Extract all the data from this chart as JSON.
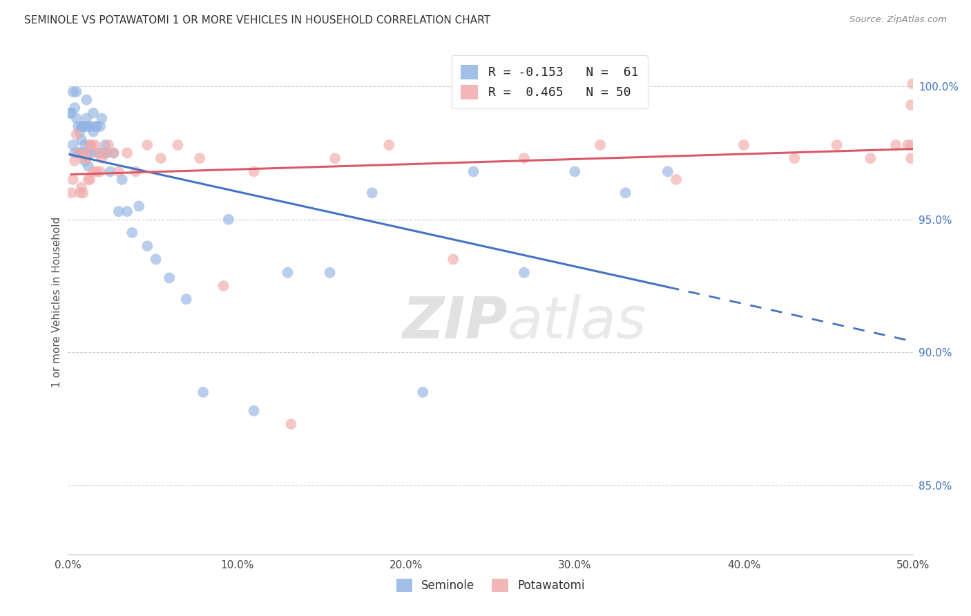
{
  "title": "SEMINOLE VS POTAWATOMI 1 OR MORE VEHICLES IN HOUSEHOLD CORRELATION CHART",
  "source": "Source: ZipAtlas.com",
  "ylabel": "1 or more Vehicles in Household",
  "y_tick_labels": [
    "85.0%",
    "90.0%",
    "95.0%",
    "100.0%"
  ],
  "y_tick_values": [
    0.85,
    0.9,
    0.95,
    1.0
  ],
  "x_range": [
    0.0,
    0.5
  ],
  "y_range": [
    0.824,
    1.014
  ],
  "legend_blue_label": "R = -0.153   N =  61",
  "legend_pink_label": "R =  0.465   N = 50",
  "blue_scatter_color": "#92B4E3",
  "pink_scatter_color": "#F2AAAA",
  "line_blue": "#4472C4",
  "line_pink": "#D9586A",
  "watermark_zip": "ZIP",
  "watermark_atlas": "atlas",
  "seminole_x": [
    0.001,
    0.002,
    0.003,
    0.003,
    0.004,
    0.004,
    0.005,
    0.005,
    0.006,
    0.006,
    0.007,
    0.007,
    0.008,
    0.008,
    0.008,
    0.009,
    0.009,
    0.01,
    0.01,
    0.01,
    0.011,
    0.011,
    0.012,
    0.012,
    0.012,
    0.013,
    0.013,
    0.014,
    0.015,
    0.015,
    0.016,
    0.017,
    0.018,
    0.019,
    0.02,
    0.021,
    0.022,
    0.023,
    0.025,
    0.027,
    0.03,
    0.032,
    0.035,
    0.038,
    0.042,
    0.047,
    0.052,
    0.06,
    0.07,
    0.08,
    0.095,
    0.11,
    0.13,
    0.155,
    0.18,
    0.21,
    0.24,
    0.27,
    0.3,
    0.33,
    0.355
  ],
  "seminole_y": [
    0.99,
    0.99,
    0.978,
    0.998,
    0.975,
    0.992,
    0.988,
    0.998,
    0.985,
    0.975,
    0.983,
    0.975,
    0.98,
    0.985,
    0.975,
    0.985,
    0.975,
    0.972,
    0.985,
    0.978,
    0.988,
    0.995,
    0.985,
    0.975,
    0.97,
    0.985,
    0.978,
    0.975,
    0.99,
    0.983,
    0.985,
    0.985,
    0.975,
    0.985,
    0.988,
    0.975,
    0.978,
    0.975,
    0.968,
    0.975,
    0.953,
    0.965,
    0.953,
    0.945,
    0.955,
    0.94,
    0.935,
    0.928,
    0.92,
    0.885,
    0.95,
    0.878,
    0.93,
    0.93,
    0.96,
    0.885,
    0.968,
    0.93,
    0.968,
    0.96,
    0.968
  ],
  "potawatomi_x": [
    0.002,
    0.003,
    0.004,
    0.005,
    0.006,
    0.007,
    0.008,
    0.009,
    0.01,
    0.01,
    0.011,
    0.012,
    0.013,
    0.013,
    0.014,
    0.015,
    0.016,
    0.017,
    0.018,
    0.019,
    0.02,
    0.022,
    0.024,
    0.027,
    0.03,
    0.035,
    0.04,
    0.047,
    0.055,
    0.065,
    0.078,
    0.092,
    0.11,
    0.132,
    0.158,
    0.19,
    0.228,
    0.27,
    0.315,
    0.36,
    0.4,
    0.43,
    0.455,
    0.475,
    0.49,
    0.497,
    0.499,
    0.499,
    0.499,
    0.5
  ],
  "potawatomi_y": [
    0.96,
    0.965,
    0.972,
    0.982,
    0.975,
    0.96,
    0.962,
    0.96,
    0.973,
    0.975,
    0.973,
    0.965,
    0.978,
    0.965,
    0.978,
    0.968,
    0.978,
    0.968,
    0.975,
    0.968,
    0.973,
    0.975,
    0.978,
    0.975,
    0.968,
    0.975,
    0.968,
    0.978,
    0.973,
    0.978,
    0.973,
    0.925,
    0.968,
    0.873,
    0.973,
    0.978,
    0.935,
    0.973,
    0.978,
    0.965,
    0.978,
    0.973,
    0.978,
    0.973,
    0.978,
    0.978,
    0.973,
    0.978,
    0.993,
    1.001
  ]
}
